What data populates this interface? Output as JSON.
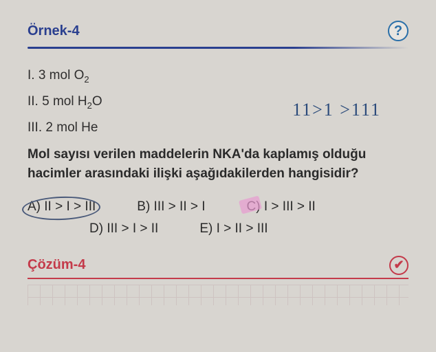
{
  "header": {
    "title": "Örnek-4",
    "question_mark": "?"
  },
  "items": {
    "i1": "I.  3 mol O",
    "i1_sub": "2",
    "i2": "II.  5 mol H",
    "i2_sub": "2",
    "i2_suffix": "O",
    "i3": "III. 2 mol He"
  },
  "handwriting": "11>1 >111",
  "question": "Mol sayısı verilen maddelerin NKA'da kaplamış olduğu hacimler arasındaki ilişki aşağıdakilerden hangisidir?",
  "options": {
    "a": "A) II > I > III",
    "b": "B) III > II > I",
    "c": "C) I > III > II",
    "d": "D) III > I > II",
    "e": "E) I > II > III"
  },
  "solution": {
    "title": "Çözüm-4",
    "check": "✔"
  }
}
